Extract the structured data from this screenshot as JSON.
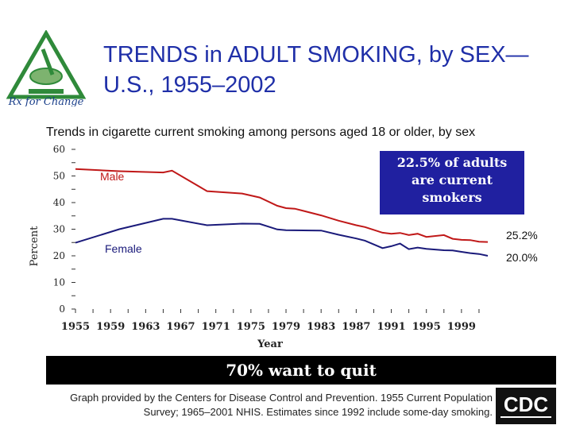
{
  "logo": {
    "text": "Rx for Change",
    "icon": "rx-for-change-logo"
  },
  "slide": {
    "title_line1": "TRENDS in ADULT SMOKING, by SEX—",
    "title_line2": "U.S., 1955–2002"
  },
  "callout": {
    "line1": "22.5% of adults",
    "line2": "are current",
    "line3": "smokers",
    "color": "#2020a0"
  },
  "banner": {
    "text": "70% want to quit"
  },
  "source": {
    "line1": "Graph provided by the Centers for Disease Control and Prevention. 1955 Current Population",
    "line2": "Survey; 1965–2001 NHIS. Estimates since 1992 include some-day smoking."
  },
  "cdc_logo": {
    "text": "CDC",
    "icon": "cdc-logo"
  },
  "chart_data": {
    "type": "line",
    "title": "Trends in cigarette current smoking among persons aged 18 or older, by sex",
    "xlabel": "Year",
    "ylabel": "Percent",
    "xlim": [
      1955,
      2002
    ],
    "ylim": [
      0,
      60
    ],
    "x_ticks": [
      "1955",
      "1959",
      "1963",
      "1967",
      "1971",
      "1975",
      "1979",
      "1983",
      "1987",
      "1991",
      "1995",
      "1999"
    ],
    "y_ticks": [
      "0",
      "10",
      "20",
      "30",
      "40",
      "50",
      "60"
    ],
    "series": [
      {
        "name": "Male",
        "color": "#c01818",
        "end_label": "25.2%",
        "x": [
          1955,
          1960,
          1965,
          1966,
          1970,
          1974,
          1976,
          1978,
          1979,
          1980,
          1983,
          1985,
          1987,
          1988,
          1990,
          1991,
          1992,
          1993,
          1994,
          1995,
          1997,
          1998,
          1999,
          2000,
          2001,
          2002
        ],
        "y": [
          52.6,
          51.8,
          51.3,
          52.0,
          44.3,
          43.4,
          41.9,
          38.8,
          37.9,
          37.7,
          35.2,
          33.2,
          31.5,
          30.8,
          28.7,
          28.3,
          28.6,
          27.8,
          28.3,
          27.1,
          27.8,
          26.4,
          26.0,
          25.9,
          25.3,
          25.2
        ]
      },
      {
        "name": "Female",
        "color": "#1a1a7a",
        "end_label": "20.0%",
        "x": [
          1955,
          1960,
          1965,
          1966,
          1970,
          1974,
          1976,
          1978,
          1979,
          1983,
          1985,
          1987,
          1988,
          1990,
          1991,
          1992,
          1993,
          1994,
          1995,
          1997,
          1998,
          1999,
          2000,
          2001,
          2002
        ],
        "y": [
          24.9,
          30.0,
          33.9,
          33.9,
          31.5,
          32.1,
          32.0,
          29.9,
          29.6,
          29.5,
          27.9,
          26.5,
          25.7,
          22.9,
          23.6,
          24.6,
          22.5,
          23.1,
          22.6,
          22.1,
          22.0,
          21.5,
          21.0,
          20.7,
          20.0
        ]
      }
    ]
  }
}
